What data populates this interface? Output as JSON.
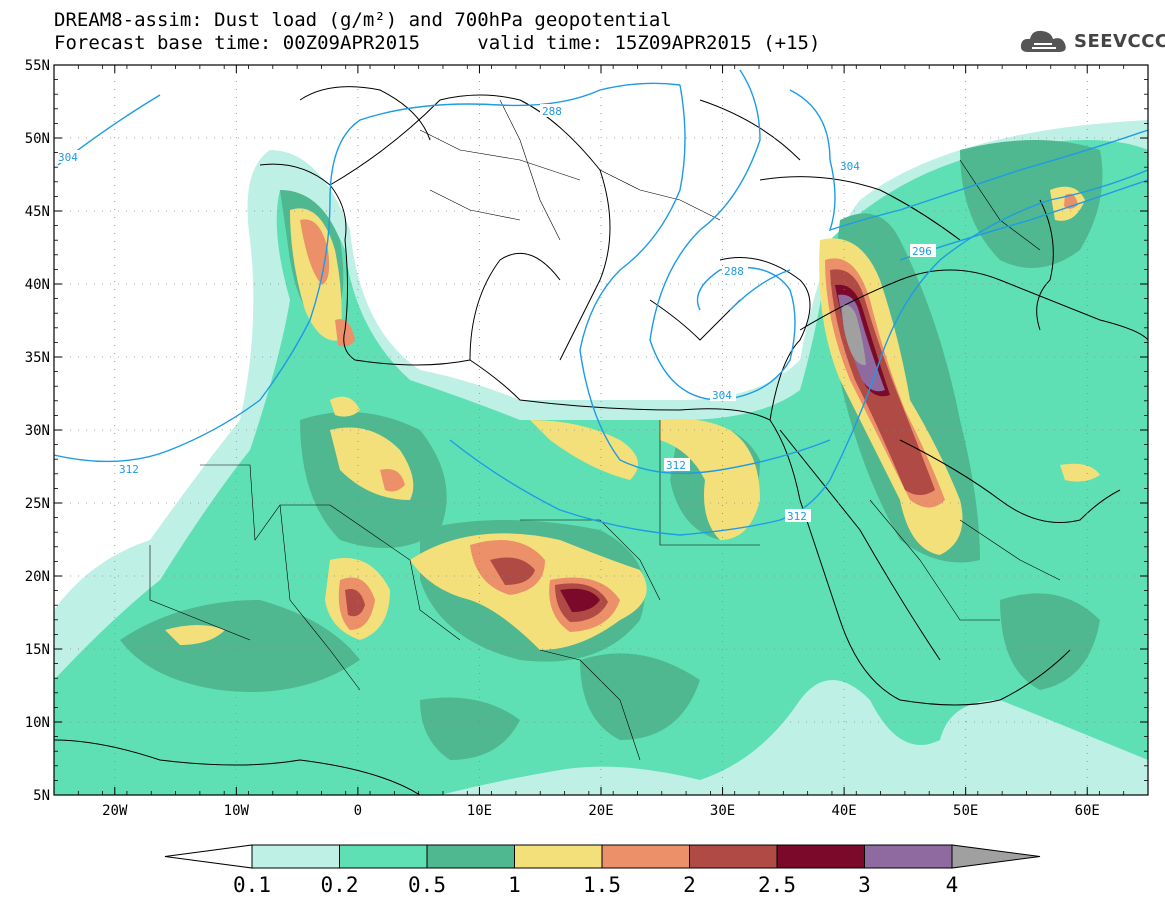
{
  "title": {
    "line1": "DREAM8-assim: Dust load (g/m²) and 700hPa geopotential",
    "line2_base_label": "Forecast base time: 00Z09APR2015",
    "line2_valid_label": "valid time: 15Z09APR2015 (+15)"
  },
  "logo": {
    "text": "SEEVCCC",
    "icon": "cloud-icon"
  },
  "map": {
    "lon_range": [
      -25,
      65
    ],
    "lat_range": [
      5,
      55
    ],
    "lat_ticks": [
      "55N",
      "50N",
      "45N",
      "40N",
      "35N",
      "30N",
      "25N",
      "20N",
      "15N",
      "10N",
      "5N"
    ],
    "lon_ticks": [
      "20W",
      "10W",
      "0",
      "10E",
      "20E",
      "30E",
      "40E",
      "50E",
      "60E"
    ],
    "contour_labels": [
      "304",
      "312",
      "288",
      "304",
      "296",
      "304",
      "312",
      "288",
      "312"
    ]
  },
  "colorbar": {
    "labels": [
      "0.1",
      "0.2",
      "0.5",
      "1",
      "1.5",
      "2",
      "2.5",
      "3",
      "4"
    ],
    "colors": [
      "#ffffff",
      "#bff0e6",
      "#5fe0b4",
      "#4fb890",
      "#f4e07a",
      "#eb9068",
      "#b04a44",
      "#7b0a2a",
      "#8e6aa0",
      "#a0a0a0"
    ]
  }
}
